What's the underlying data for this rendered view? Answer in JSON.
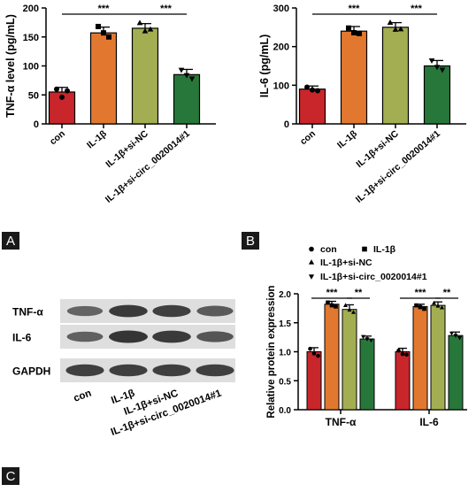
{
  "panel_labels": {
    "a": "A",
    "b": "B",
    "c": "C"
  },
  "colors": {
    "con": "#c8262b",
    "IL-1β": "#e2782f",
    "IL-1β+si-NC": "#a3ae52",
    "IL-1β+si-circ_0020014#1": "#27773a",
    "blot_bg": "#dedede",
    "band": "#2b2b2b"
  },
  "chart_data": [
    {
      "id": "A",
      "type": "bar",
      "categories": [
        "con",
        "IL-1β",
        "IL-1β+si-NC",
        "IL-1β+si-circ_0020014#1"
      ],
      "values": [
        55,
        157,
        165,
        85
      ],
      "errors": [
        8,
        10,
        8,
        9
      ],
      "points": [
        [
          60,
          46,
          57
        ],
        [
          168,
          157,
          150
        ],
        [
          174,
          160,
          163
        ],
        [
          93,
          84,
          78
        ]
      ],
      "xlabel": "",
      "ylabel": "TNF-α level (pg/mL)",
      "ylim": [
        0,
        200
      ],
      "yticks": [
        0,
        50,
        100,
        150,
        200
      ],
      "significance": [
        {
          "from": 0,
          "to": 2,
          "label": "***"
        },
        {
          "from": 2,
          "to": 3,
          "label": "***"
        }
      ]
    },
    {
      "id": "B",
      "type": "bar",
      "categories": [
        "con",
        "IL-1β",
        "IL-1β+si-NC",
        "IL-1β+si-circ_0020014#1"
      ],
      "values": [
        90,
        240,
        250,
        150
      ],
      "errors": [
        8,
        12,
        12,
        14
      ],
      "points": [
        [
          95,
          88,
          86
        ],
        [
          248,
          236,
          234
        ],
        [
          262,
          244,
          245
        ],
        [
          164,
          147,
          140
        ]
      ],
      "xlabel": "",
      "ylabel": "IL-6 (pg/mL)",
      "ylim": [
        0,
        300
      ],
      "yticks": [
        0,
        100,
        200,
        300
      ],
      "significance": [
        {
          "from": 0,
          "to": 2,
          "label": "***"
        },
        {
          "from": 2,
          "to": 3,
          "label": "***"
        }
      ]
    },
    {
      "id": "C",
      "type": "bar",
      "categories": [
        "TNF-α",
        "IL-6"
      ],
      "series": [
        {
          "name": "con",
          "values": [
            1.0,
            1.0
          ],
          "errors": [
            0.07,
            0.06
          ],
          "points": [
            [
              1.05,
              0.97,
              0.93
            ],
            [
              1.02,
              0.96,
              0.95
            ]
          ]
        },
        {
          "name": "IL-1β",
          "values": [
            1.82,
            1.78
          ],
          "errors": [
            0.05,
            0.04
          ],
          "points": [
            [
              1.85,
              1.8,
              1.78
            ],
            [
              1.8,
              1.77,
              1.74
            ]
          ]
        },
        {
          "name": "IL-1β+si-NC",
          "values": [
            1.73,
            1.8
          ],
          "errors": [
            0.08,
            0.06
          ],
          "points": [
            [
              1.8,
              1.72,
              1.68
            ],
            [
              1.84,
              1.79,
              1.76
            ]
          ]
        },
        {
          "name": "IL-1β+si-circ_0020014#1",
          "values": [
            1.22,
            1.28
          ],
          "errors": [
            0.05,
            0.06
          ],
          "points": [
            [
              1.26,
              1.22,
              1.2
            ],
            [
              1.32,
              1.28,
              1.24
            ]
          ]
        }
      ],
      "legend": {
        "position": "top",
        "markers": [
          "circle",
          "square",
          "triangle-up",
          "triangle-down"
        ]
      },
      "xlabel": "",
      "ylabel": "Relative protein expression",
      "ylim": [
        0,
        2.0
      ],
      "yticks": [
        "0.0",
        "0.5",
        "1.0",
        "1.5",
        "2.0"
      ],
      "significance": [
        {
          "group": 0,
          "from": 0,
          "to": 2,
          "label": "***"
        },
        {
          "group": 0,
          "from": 2,
          "to": 3,
          "label": "**"
        },
        {
          "group": 1,
          "from": 0,
          "to": 2,
          "label": "***"
        },
        {
          "group": 1,
          "from": 2,
          "to": 3,
          "label": "**"
        }
      ]
    }
  ],
  "western_blot": {
    "rows": [
      "TNF-α",
      "IL-6",
      "GAPDH"
    ],
    "lanes": [
      "con",
      "IL-1β",
      "IL-1β+si-NC",
      "IL-1β+si-circ_0020014#1"
    ],
    "band_intensity": [
      [
        0.55,
        0.95,
        0.9,
        0.65
      ],
      [
        0.6,
        1.0,
        0.95,
        0.7
      ],
      [
        0.9,
        0.9,
        0.9,
        0.9
      ]
    ]
  }
}
